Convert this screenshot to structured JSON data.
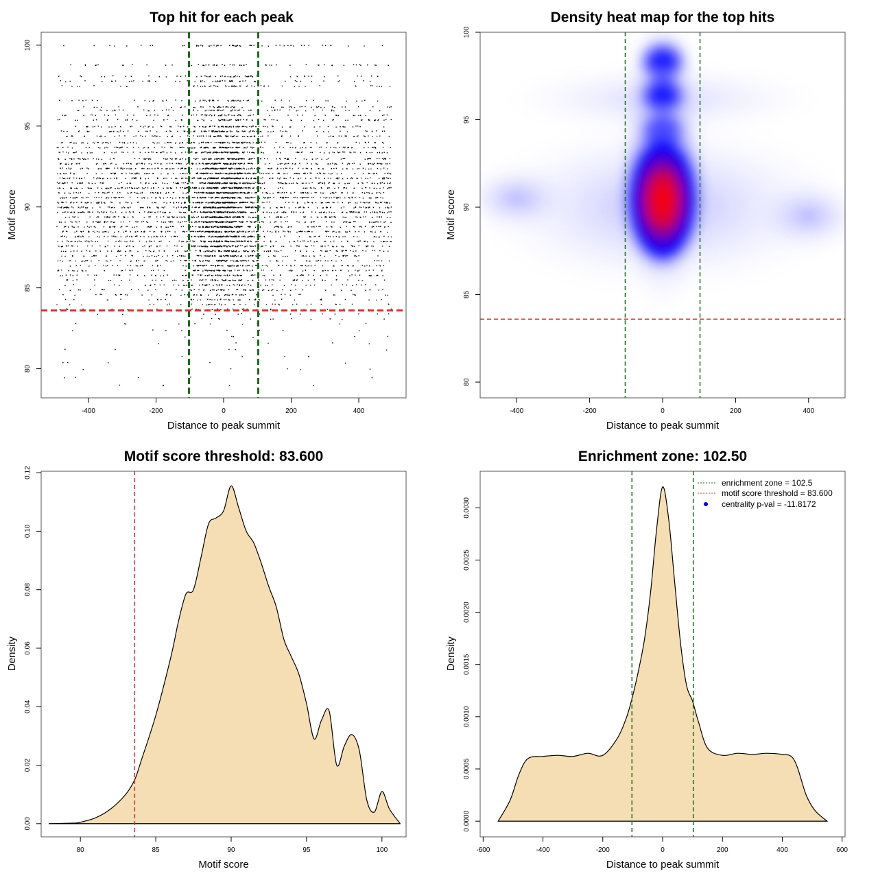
{
  "colors": {
    "threshold_line": "#e03030",
    "zone_line": "#1a6b1a",
    "density_fill": "#f5deb3",
    "heat_low": "#ffffff",
    "heat_mid": "#0000ff",
    "heat_high": "#ff0000",
    "centrality_point": "#0000ff"
  },
  "chart_data": [
    {
      "type": "scatter",
      "title": "Top hit for each peak",
      "xlabel": "Distance to peak summit",
      "ylabel": "Motif score",
      "xlim": [
        -540,
        540
      ],
      "ylim": [
        78.2,
        100.8
      ],
      "xticks": [
        "-400",
        "-200",
        "0",
        "200",
        "400"
      ],
      "xtick_values": [
        -400,
        -200,
        0,
        200,
        400
      ],
      "yticks": [
        "80",
        "85",
        "90",
        "95",
        "100"
      ],
      "ytick_values": [
        80,
        85,
        90,
        95,
        100
      ],
      "hlines": [
        83.6
      ],
      "vlines": [
        -102.5,
        102.5
      ],
      "point_cloud": {
        "x_range": [
          -495,
          495
        ],
        "score_levels": [
          100.0,
          98.8,
          98.1,
          97.8,
          97.5,
          96.6,
          96.2,
          96.0,
          95.7,
          95.4,
          95.0,
          94.7,
          94.4,
          94.0,
          93.7,
          93.4,
          93.0,
          92.7,
          92.4,
          92.1,
          91.8,
          91.5,
          91.2,
          90.9,
          90.6,
          90.3,
          90.0,
          89.7,
          89.4,
          89.1,
          88.8,
          88.5,
          88.2,
          87.9,
          87.6,
          87.3,
          87.0,
          86.7,
          86.4,
          86.1,
          85.8,
          85.5,
          85.2,
          84.9,
          84.6,
          84.3,
          84.0,
          83.7,
          83.4,
          83.1,
          82.8,
          82.4,
          82.0,
          81.6,
          81.2,
          80.8,
          80.4,
          80.0,
          79.5,
          79.0
        ],
        "central_enrichment_sd": 120
      }
    },
    {
      "type": "heatmap",
      "title": "Density heat map for the top hits",
      "xlabel": "Distance to peak summit",
      "ylabel": "Motif score",
      "xlim": [
        -500,
        500
      ],
      "ylim": [
        79.1,
        100.0
      ],
      "xticks": [
        "-400",
        "-200",
        "0",
        "200",
        "400"
      ],
      "xtick_values": [
        -400,
        -200,
        0,
        200,
        400
      ],
      "yticks": [
        "80",
        "85",
        "90",
        "95",
        "100"
      ],
      "ytick_values": [
        80,
        85,
        90,
        95,
        100
      ],
      "hlines": [
        83.6
      ],
      "vlines": [
        -102.5,
        102.5
      ],
      "hotspots": [
        {
          "x": 0,
          "y": 90.4,
          "intensity": "high"
        },
        {
          "x": 0,
          "y": 98.3,
          "intensity": "mid"
        },
        {
          "x": 0,
          "y": 96.4,
          "intensity": "mid"
        },
        {
          "x": 0,
          "y": 94.3,
          "intensity": "mid"
        },
        {
          "x": -400,
          "y": 90.5,
          "intensity": "low"
        },
        {
          "x": 400,
          "y": 89.5,
          "intensity": "low"
        }
      ]
    },
    {
      "type": "area",
      "title": "Motif score threshold: 83.600",
      "xlabel": "Motif score",
      "ylabel": "Density",
      "xlim": [
        77.4,
        101.6
      ],
      "ylim": [
        -0.0045,
        0.1205
      ],
      "xticks": [
        "80",
        "85",
        "90",
        "95",
        "100"
      ],
      "xtick_values": [
        80,
        85,
        90,
        95,
        100
      ],
      "yticks": [
        "0.00",
        "0.02",
        "0.04",
        "0.06",
        "0.08",
        "0.10",
        "0.12"
      ],
      "ytick_values": [
        0,
        0.02,
        0.04,
        0.06,
        0.08,
        0.1,
        0.12
      ],
      "vlines": [
        83.6
      ],
      "x": [
        77.9,
        79.5,
        80.0,
        81.0,
        82.0,
        83.0,
        83.6,
        84.0,
        85.0,
        86.0,
        86.5,
        87.0,
        87.5,
        88.0,
        88.5,
        89.0,
        89.5,
        90.0,
        90.5,
        91.0,
        91.5,
        92.0,
        92.5,
        93.0,
        93.5,
        94.0,
        94.5,
        95.0,
        95.5,
        96.0,
        96.5,
        97.0,
        97.5,
        98.0,
        98.5,
        99.0,
        99.5,
        100.0,
        100.5,
        101.2
      ],
      "y": [
        0.0,
        0.0002,
        0.0005,
        0.002,
        0.005,
        0.01,
        0.015,
        0.021,
        0.037,
        0.057,
        0.069,
        0.0785,
        0.08,
        0.091,
        0.1025,
        0.1045,
        0.107,
        0.1155,
        0.108,
        0.1,
        0.096,
        0.089,
        0.081,
        0.074,
        0.063,
        0.057,
        0.051,
        0.041,
        0.029,
        0.0355,
        0.0385,
        0.02,
        0.0265,
        0.0305,
        0.025,
        0.008,
        0.004,
        0.011,
        0.005,
        0.0001
      ]
    },
    {
      "type": "area",
      "title": "Enrichment zone: 102.50",
      "xlabel": "Distance to peak summit",
      "ylabel": "Density",
      "xlim": [
        -610,
        610
      ],
      "ylim": [
        -0.00015,
        0.00335
      ],
      "xticks": [
        "-600",
        "-400",
        "-200",
        "0",
        "200",
        "400",
        "600"
      ],
      "xtick_values": [
        -600,
        -400,
        -200,
        0,
        200,
        400,
        600
      ],
      "yticks": [
        "0.0000",
        "0.0005",
        "0.0010",
        "0.0015",
        "0.0020",
        "0.0025",
        "0.0030"
      ],
      "ytick_values": [
        0,
        0.0005,
        0.001,
        0.0015,
        0.002,
        0.0025,
        0.003
      ],
      "vlines": [
        -102.5,
        102.5
      ],
      "x": [
        -550,
        -510,
        -480,
        -450,
        -400,
        -350,
        -300,
        -250,
        -200,
        -150,
        -120,
        -100,
        -80,
        -60,
        -40,
        -20,
        0,
        20,
        40,
        60,
        80,
        100,
        120,
        150,
        200,
        250,
        300,
        350,
        400,
        430,
        450,
        480,
        510,
        550
      ],
      "y": [
        0.0,
        0.0002,
        0.00045,
        0.0006,
        0.00062,
        0.00063,
        0.00062,
        0.00065,
        0.00063,
        0.0008,
        0.001,
        0.0012,
        0.00145,
        0.00175,
        0.0022,
        0.0028,
        0.0032,
        0.0029,
        0.0023,
        0.0017,
        0.0013,
        0.00115,
        0.00095,
        0.0007,
        0.00063,
        0.00065,
        0.00064,
        0.00065,
        0.00064,
        0.00062,
        0.00052,
        0.00025,
        0.0001,
        0.0
      ],
      "legend": {
        "placement": "top-right",
        "entries": [
          {
            "label": "enrichment zone = 102.5",
            "style": "dotted",
            "color": "#1a6b1a"
          },
          {
            "label": "motif score threshold = 83.600",
            "style": "dotted",
            "color": "#e03030"
          },
          {
            "label": "centrality p-val = -11.8172",
            "style": "point",
            "color": "#0000ff"
          }
        ]
      }
    }
  ]
}
